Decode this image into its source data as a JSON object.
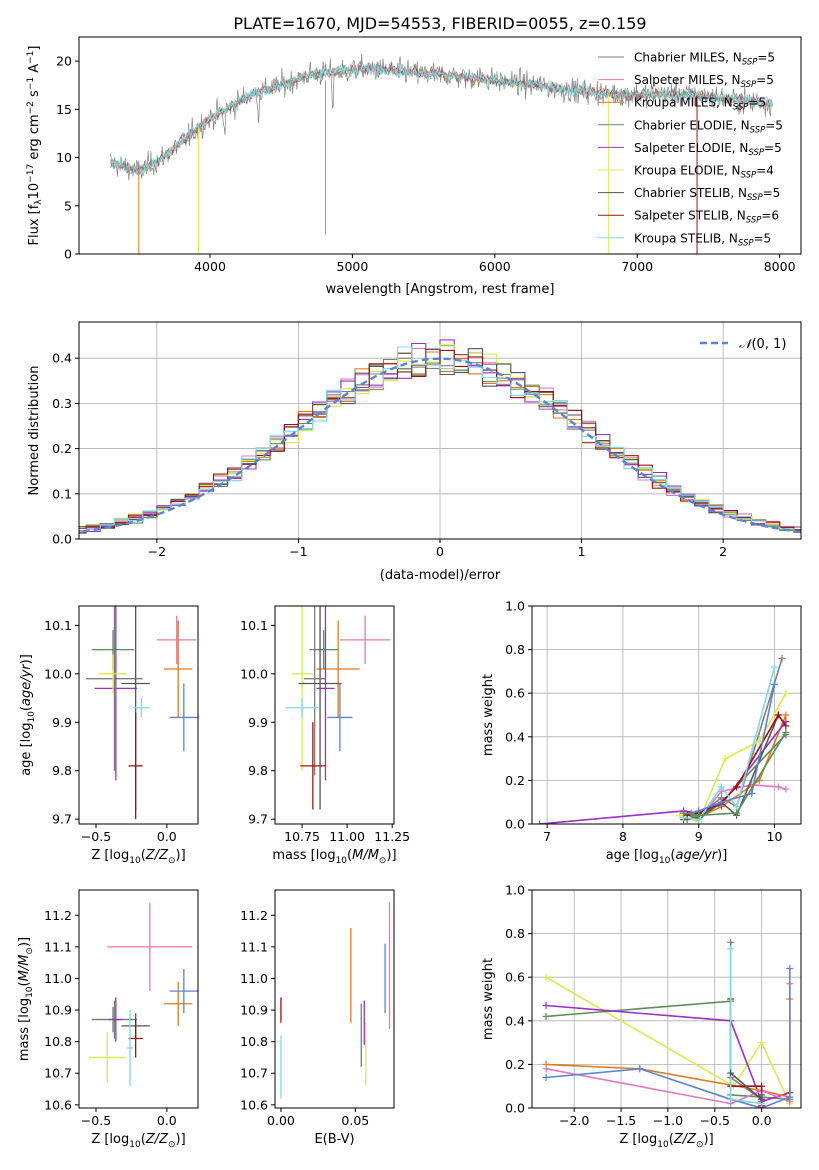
{
  "page": {
    "title": "PLATE=1670, MJD=54553, FIBERID=0055, z=0.159"
  },
  "models": [
    {
      "label": "Chabrier MILES, N",
      "n": "5",
      "color": "#7f7f7f"
    },
    {
      "label": "Salpeter MILES, N",
      "n": "5",
      "color": "#e377c2"
    },
    {
      "label": "Kroupa MILES, N",
      "n": "5",
      "color": "#e07b1c"
    },
    {
      "label": "Chabrier ELODIE, N",
      "n": "5",
      "color": "#5e8c5a"
    },
    {
      "label": "Salpeter ELODIE, N",
      "n": "5",
      "color": "#9b30c8"
    },
    {
      "label": "Kroupa ELODIE, N",
      "n": "4",
      "color": "#d9ec4c"
    },
    {
      "label": "Chabrier STELIB, N",
      "n": "5",
      "color": "#555555"
    },
    {
      "label": "Salpeter STELIB, N",
      "n": "6",
      "color": "#a01010"
    },
    {
      "label": "Kroupa STELIB, N",
      "n": "5",
      "color": "#80d8e8"
    }
  ],
  "colors": {
    "cyan": "#7fd8d8",
    "blue": "#5b84d6",
    "grid": "#b0b0b0"
  },
  "chart_data": [
    {
      "id": "spectrum",
      "type": "line",
      "xlabel": "wavelength [Angstrom, rest frame]",
      "ylabel": "Flux [f",
      "xlim": [
        3080,
        8150
      ],
      "ylim": [
        0,
        22.5
      ],
      "xticks": [
        4000,
        5000,
        6000,
        7000,
        8000
      ],
      "yticks": [
        0,
        5,
        10,
        15,
        20
      ],
      "legend": "right",
      "subscript_label": "SSP",
      "anchors": [
        [
          3300,
          9.5
        ],
        [
          3500,
          8.6
        ],
        [
          3650,
          9.8
        ],
        [
          3800,
          11.6
        ],
        [
          3950,
          13.5
        ],
        [
          4100,
          14.9
        ],
        [
          4300,
          16.6
        ],
        [
          4500,
          17.5
        ],
        [
          4700,
          18.6
        ],
        [
          4900,
          18.9
        ],
        [
          5100,
          19.2
        ],
        [
          5300,
          19.0
        ],
        [
          5500,
          18.7
        ],
        [
          5700,
          18.5
        ],
        [
          5900,
          18.2
        ],
        [
          6100,
          17.8
        ],
        [
          6300,
          17.5
        ],
        [
          6500,
          17.0
        ],
        [
          6700,
          16.8
        ],
        [
          6900,
          16.5
        ],
        [
          7100,
          16.6
        ],
        [
          7300,
          16.6
        ],
        [
          7500,
          16.3
        ],
        [
          7700,
          16.0
        ],
        [
          7950,
          15.6
        ]
      ]
    },
    {
      "id": "residuals",
      "type": "histogram",
      "xlabel": "(data-model)/error",
      "ylabel": "Normed distribution",
      "xlim": [
        -2.55,
        2.55
      ],
      "ylim": [
        0,
        0.48
      ],
      "xticks": [
        -2,
        -1,
        0,
        1,
        2
      ],
      "yticks": [
        0.0,
        0.1,
        0.2,
        0.3,
        0.4
      ],
      "legend": "top-right",
      "legend_label": "(0, 1)",
      "legend_symbol": "𝒩",
      "bin_width": 0.1
    },
    {
      "id": "age-vs-Z",
      "type": "scatter",
      "xlabel": "Z [log",
      "ylabel": "age  [log",
      "xlim": [
        -0.62,
        0.22
      ],
      "ylim": [
        9.69,
        10.14
      ],
      "xticks": [
        -0.5,
        0.0
      ],
      "yticks": [
        9.7,
        9.8,
        9.9,
        10.0,
        10.1
      ],
      "points": [
        {
          "x": -0.37,
          "y": 9.99,
          "xerr": 0.2,
          "yerr": 0.19,
          "color": "#7f7f7f"
        },
        {
          "x": 0.07,
          "y": 10.07,
          "xerr": 0.14,
          "yerr": 0.05,
          "color": "#e377c2"
        },
        {
          "x": 0.08,
          "y": 10.01,
          "xerr": 0.1,
          "yerr": 0.1,
          "color": "#e07b1c"
        },
        {
          "x": -0.38,
          "y": 10.05,
          "xerr": 0.15,
          "yerr": 0.04,
          "color": "#5e8c5a"
        },
        {
          "x": -0.36,
          "y": 9.97,
          "xerr": 0.15,
          "yerr": 0.19,
          "color": "#9b30c8"
        },
        {
          "x": -0.38,
          "y": 10.0,
          "xerr": 0.1,
          "yerr": 0.04,
          "color": "#d9ec4c"
        },
        {
          "x": -0.22,
          "y": 9.98,
          "xerr": 0.1,
          "yerr": 0.26,
          "color": "#555555"
        },
        {
          "x": -0.22,
          "y": 9.81,
          "xerr": 0.05,
          "yerr": 0.11,
          "color": "#a01010"
        },
        {
          "x": -0.18,
          "y": 9.93,
          "xerr": 0.06,
          "yerr": 0.02,
          "color": "#80d8e8"
        },
        {
          "x": 0.12,
          "y": 9.91,
          "xerr": 0.1,
          "yerr": 0.07,
          "color": "#5b84d6"
        }
      ]
    },
    {
      "id": "age-vs-mass",
      "type": "scatter",
      "xlabel": "mass [log",
      "ylabel": "",
      "xlim": [
        10.6,
        11.26
      ],
      "ylim": [
        9.69,
        10.14
      ],
      "xticks": [
        10.75,
        11.0,
        11.25
      ],
      "yticks": [
        9.7,
        9.8,
        9.9,
        10.0,
        10.1
      ],
      "points": [
        {
          "x": 10.82,
          "y": 9.99,
          "xerr": 0.06,
          "yerr": 0.2,
          "color": "#7f7f7f"
        },
        {
          "x": 11.1,
          "y": 10.07,
          "xerr": 0.14,
          "yerr": 0.05,
          "color": "#e377c2"
        },
        {
          "x": 10.95,
          "y": 10.01,
          "xerr": 0.12,
          "yerr": 0.1,
          "color": "#e07b1c"
        },
        {
          "x": 10.87,
          "y": 10.05,
          "xerr": 0.08,
          "yerr": 0.04,
          "color": "#5e8c5a"
        },
        {
          "x": 10.88,
          "y": 9.97,
          "xerr": 0.05,
          "yerr": 0.19,
          "color": "#9b30c8"
        },
        {
          "x": 10.75,
          "y": 10.0,
          "xerr": 0.06,
          "yerr": 0.2,
          "color": "#d9ec4c"
        },
        {
          "x": 10.85,
          "y": 9.98,
          "xerr": 0.12,
          "yerr": 0.26,
          "color": "#555555"
        },
        {
          "x": 10.81,
          "y": 9.81,
          "xerr": 0.07,
          "yerr": 0.09,
          "color": "#a01010"
        },
        {
          "x": 10.75,
          "y": 9.93,
          "xerr": 0.09,
          "yerr": 0.02,
          "color": "#80d8e8"
        },
        {
          "x": 10.96,
          "y": 9.91,
          "xerr": 0.07,
          "yerr": 0.07,
          "color": "#5b84d6"
        }
      ]
    },
    {
      "id": "weight-vs-age",
      "type": "line",
      "xlabel": "age  [log",
      "ylabel": "mass weight",
      "xlim": [
        6.8,
        10.35
      ],
      "ylim": [
        0,
        1.0
      ],
      "xticks": [
        7,
        8,
        9,
        10
      ],
      "yticks": [
        0.0,
        0.2,
        0.4,
        0.6,
        0.8,
        1.0
      ],
      "series": [
        {
          "color": "#7f7f7f",
          "x": [
            8.85,
            9.0,
            9.3,
            9.5,
            10.1
          ],
          "y": [
            0.02,
            0.04,
            0.12,
            0.08,
            0.76
          ]
        },
        {
          "color": "#e377c2",
          "x": [
            8.8,
            9.0,
            9.3,
            9.7,
            10.05,
            10.15
          ],
          "y": [
            0.03,
            0.02,
            0.15,
            0.18,
            0.17,
            0.16
          ]
        },
        {
          "color": "#e07b1c",
          "x": [
            8.8,
            9.0,
            9.3,
            9.8,
            10.15
          ],
          "y": [
            0.05,
            0.03,
            0.08,
            0.2,
            0.5
          ]
        },
        {
          "color": "#5e8c5a",
          "x": [
            8.8,
            9.0,
            9.3,
            10.15
          ],
          "y": [
            0.05,
            0.02,
            0.1,
            0.41
          ]
        },
        {
          "color": "#9b30c8",
          "x": [
            6.9,
            8.8,
            9.0,
            9.3,
            10.15
          ],
          "y": [
            0.0,
            0.06,
            0.05,
            0.09,
            0.47
          ]
        },
        {
          "color": "#d9ec4c",
          "x": [
            8.75,
            9.0,
            9.35,
            9.8,
            10.15
          ],
          "y": [
            0.04,
            0.01,
            0.3,
            0.38,
            0.6
          ]
        },
        {
          "color": "#555555",
          "x": [
            8.8,
            9.0,
            9.3,
            9.5,
            10.05
          ],
          "y": [
            0.02,
            0.03,
            0.1,
            0.04,
            0.5
          ]
        },
        {
          "color": "#a01010",
          "x": [
            8.85,
            9.0,
            9.3,
            9.5,
            10.05,
            10.15
          ],
          "y": [
            0.04,
            0.05,
            0.1,
            0.17,
            0.5,
            0.45
          ]
        },
        {
          "color": "#80d8e8",
          "x": [
            8.8,
            9.0,
            9.3,
            9.5,
            10.0
          ],
          "y": [
            0.03,
            0.02,
            0.17,
            0.08,
            0.72
          ]
        },
        {
          "color": "#5b84d6",
          "x": [
            8.9,
            9.0,
            9.3,
            9.7,
            10.0
          ],
          "y": [
            0.05,
            0.06,
            0.1,
            0.14,
            0.64
          ]
        },
        {
          "color": "#5e8c5a",
          "x": [
            8.8,
            9.0,
            9.5,
            10.15
          ],
          "y": [
            0.05,
            0.04,
            0.05,
            0.42
          ]
        }
      ]
    },
    {
      "id": "mass-vs-Z",
      "type": "scatter",
      "xlabel": "Z [log",
      "ylabel": "mass [log",
      "xlim": [
        -0.62,
        0.22
      ],
      "ylim": [
        10.59,
        11.28
      ],
      "xticks": [
        -0.5,
        0.0
      ],
      "yticks": [
        10.6,
        10.7,
        10.8,
        10.9,
        11.0,
        11.1,
        11.2
      ],
      "points": [
        {
          "x": -0.37,
          "y": 10.87,
          "xerr": 0.16,
          "yerr": 0.06,
          "color": "#7f7f7f"
        },
        {
          "x": -0.12,
          "y": 11.1,
          "xerr": 0.3,
          "yerr": 0.14,
          "color": "#e377c2"
        },
        {
          "x": 0.08,
          "y": 10.92,
          "xerr": 0.1,
          "yerr": 0.07,
          "color": "#e07b1c"
        },
        {
          "x": -0.38,
          "y": 10.87,
          "xerr": 0.15,
          "yerr": 0.04,
          "color": "#5e8c5a"
        },
        {
          "x": -0.36,
          "y": 10.87,
          "xerr": 0.05,
          "yerr": 0.07,
          "color": "#9b30c8"
        },
        {
          "x": -0.42,
          "y": 10.75,
          "xerr": 0.13,
          "yerr": 0.08,
          "color": "#d9ec4c"
        },
        {
          "x": -0.22,
          "y": 10.85,
          "xerr": 0.1,
          "yerr": 0.04,
          "color": "#555555"
        },
        {
          "x": -0.22,
          "y": 10.81,
          "xerr": 0.05,
          "yerr": 0.06,
          "color": "#a01010"
        },
        {
          "x": -0.26,
          "y": 10.78,
          "xerr": 0.02,
          "yerr": 0.12,
          "color": "#80d8e8"
        },
        {
          "x": 0.12,
          "y": 10.96,
          "xerr": 0.1,
          "yerr": 0.07,
          "color": "#5b84d6"
        }
      ]
    },
    {
      "id": "mass-vs-EBV",
      "type": "scatter",
      "xlabel": "E(B-V)",
      "ylabel": "",
      "xlim": [
        -0.004,
        0.076
      ],
      "ylim": [
        10.59,
        11.28
      ],
      "xticks": [
        0.0,
        0.05
      ],
      "yticks": [
        10.6,
        10.7,
        10.8,
        10.9,
        11.0,
        11.1,
        11.2
      ],
      "points": [
        {
          "x": 0.0,
          "y": 10.9,
          "yerr": 0.04,
          "color": "#a01010"
        },
        {
          "x": 0.0,
          "y": 10.72,
          "yerr": 0.1,
          "color": "#80d8e8"
        },
        {
          "x": 0.047,
          "y": 11.01,
          "yerr": 0.15,
          "color": "#e07b1c"
        },
        {
          "x": 0.054,
          "y": 10.82,
          "yerr": 0.1,
          "color": "#5e8c5a"
        },
        {
          "x": 0.056,
          "y": 10.86,
          "yerr": 0.07,
          "color": "#9b30c8"
        },
        {
          "x": 0.057,
          "y": 10.76,
          "yerr": 0.1,
          "color": "#d9ec4c"
        },
        {
          "x": 0.07,
          "y": 11.0,
          "yerr": 0.11,
          "color": "#5b84d6"
        },
        {
          "x": 0.073,
          "y": 11.04,
          "yerr": 0.2,
          "color": "#e377c2"
        }
      ]
    },
    {
      "id": "weight-vs-Z",
      "type": "line",
      "xlabel": "Z [log",
      "ylabel": "mass weight",
      "xlim": [
        -2.45,
        0.42
      ],
      "ylim": [
        0,
        1.0
      ],
      "xticks": [
        -2.0,
        -1.5,
        -1.0,
        -0.5,
        0.0
      ],
      "yticks": [
        0.0,
        0.2,
        0.4,
        0.6,
        0.8,
        1.0
      ],
      "series": [
        {
          "color": "#d9ec4c",
          "x": [
            -2.3,
            -0.3,
            0.0,
            0.3
          ],
          "y": [
            0.6,
            0.1,
            0.3,
            0.02
          ]
        },
        {
          "color": "#5e8c5a",
          "x": [
            -2.3,
            -0.33,
            -0.33,
            0.0,
            0.3
          ],
          "y": [
            0.42,
            0.49,
            0.06,
            0.05,
            0.04
          ]
        },
        {
          "color": "#9b30c8",
          "x": [
            -2.3,
            -0.33,
            0.0,
            0.3
          ],
          "y": [
            0.47,
            0.4,
            0.03,
            0.07
          ]
        },
        {
          "color": "#e07b1c",
          "x": [
            -2.3,
            -1.3,
            0.0,
            0.3,
            0.3
          ],
          "y": [
            0.2,
            0.18,
            0.08,
            0.05,
            0.5
          ]
        },
        {
          "color": "#e377c2",
          "x": [
            -2.3,
            -0.33,
            0.0,
            0.3,
            0.3
          ],
          "y": [
            0.18,
            0.02,
            0.08,
            0.03,
            0.57
          ]
        },
        {
          "color": "#5b84d6",
          "x": [
            -2.3,
            -1.3,
            -0.33,
            0.0,
            0.3,
            0.3
          ],
          "y": [
            0.14,
            0.18,
            0.04,
            0.0,
            0.05,
            0.64
          ]
        },
        {
          "color": "#7f7f7f",
          "x": [
            -0.33,
            -0.33,
            0.0
          ],
          "y": [
            0.76,
            0.14,
            0.04
          ]
        },
        {
          "color": "#a01010",
          "x": [
            -0.33,
            -0.33,
            0.0,
            0.0
          ],
          "y": [
            0.5,
            0.1,
            0.1,
            0.01
          ]
        },
        {
          "color": "#7fd8d8",
          "x": [
            -0.33,
            -0.33,
            0.0
          ],
          "y": [
            0.73,
            0.04,
            0.02
          ]
        },
        {
          "color": "#555555",
          "x": [
            -0.33,
            0.0,
            0.0
          ],
          "y": [
            0.16,
            0.04,
            0.06
          ]
        }
      ]
    }
  ]
}
